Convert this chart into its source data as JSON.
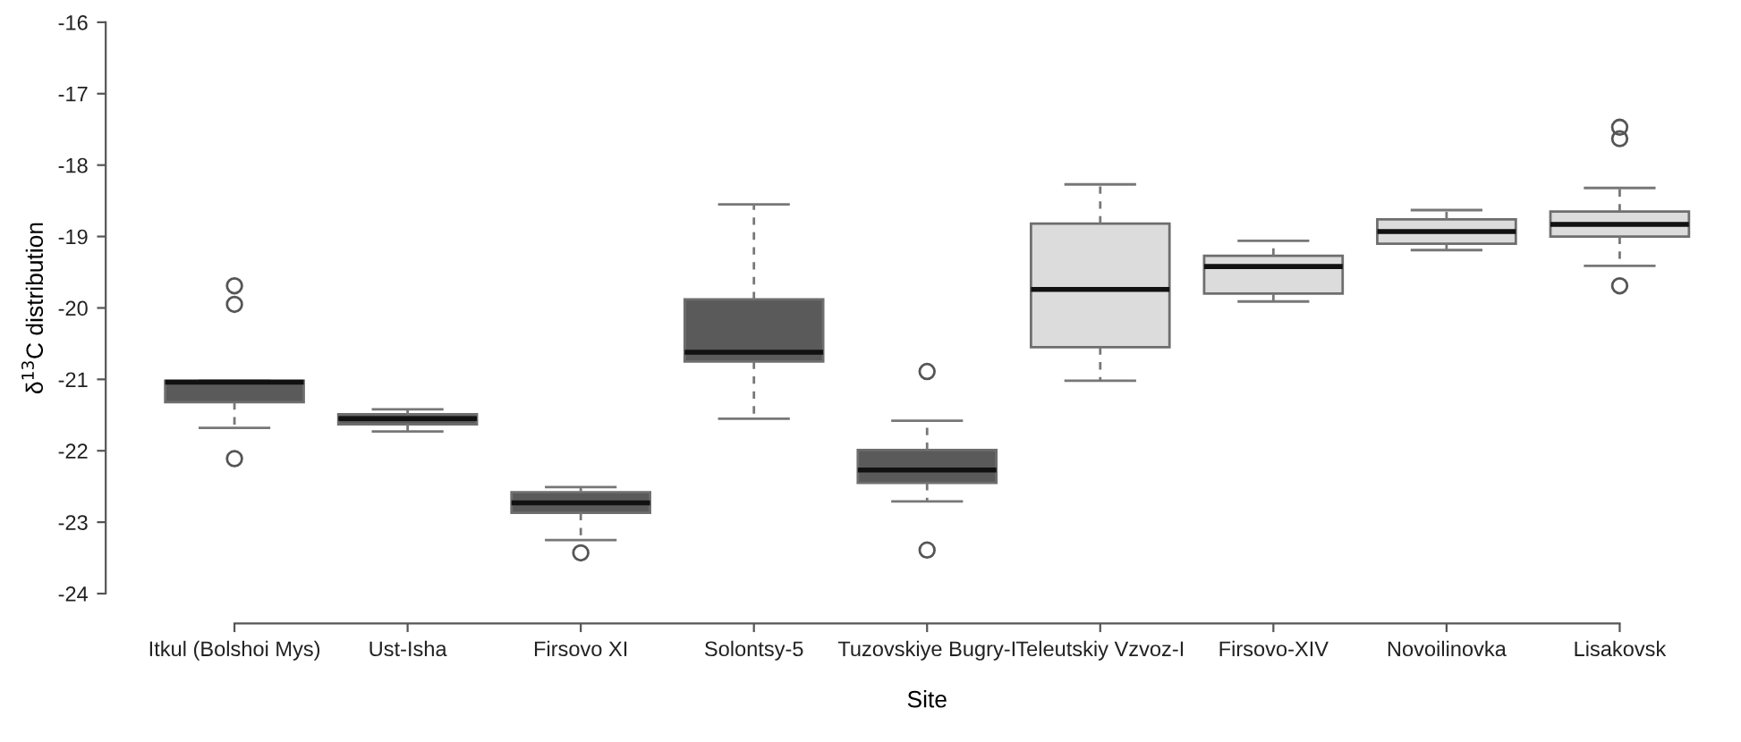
{
  "chart_data": {
    "type": "box",
    "xlabel": "Site",
    "ylabel": "δ$^{13}$C distribution",
    "categories": [
      "Itkul (Bolshoi Mys)",
      "Ust-Isha",
      "Firsovo XI",
      "Solontsy-5",
      "Tuzovskiye Bugry-I",
      "Teleutskiy Vzvoz-I",
      "Firsovo-XIV",
      "Novoilinovka",
      "Lisakovsk"
    ],
    "colors": [
      "#5a5a5a",
      "#5a5a5a",
      "#5a5a5a",
      "#5a5a5a",
      "#5a5a5a",
      "#dcdcdc",
      "#dcdcdc",
      "#dcdcdc",
      "#dcdcdc"
    ],
    "boxes": [
      {
        "low": -21.68,
        "q1": -21.32,
        "median": -21.04,
        "q3": -21.02,
        "high": -21.02,
        "outliers": [
          -19.69,
          -19.95,
          -22.11
        ]
      },
      {
        "low": -21.73,
        "q1": -21.63,
        "median": -21.55,
        "q3": -21.49,
        "high": -21.42
      },
      {
        "low": -23.25,
        "q1": -22.87,
        "median": -22.73,
        "q3": -22.58,
        "high": -22.51,
        "outliers": [
          -23.43
        ]
      },
      {
        "low": -21.55,
        "q1": -20.75,
        "median": -20.62,
        "q3": -19.88,
        "high": -18.55
      },
      {
        "low": -22.71,
        "q1": -22.45,
        "median": -22.27,
        "q3": -21.99,
        "high": -21.58,
        "outliers": [
          -20.89,
          -23.39
        ]
      },
      {
        "low": -21.02,
        "q1": -20.55,
        "median": -19.74,
        "q3": -18.82,
        "high": -18.27
      },
      {
        "low": -19.91,
        "q1": -19.8,
        "median": -19.42,
        "q3": -19.27,
        "high": -19.06
      },
      {
        "low": -19.19,
        "q1": -19.1,
        "median": -18.93,
        "q3": -18.76,
        "high": -18.63
      },
      {
        "low": -19.41,
        "q1": -19.0,
        "median": -18.83,
        "q3": -18.65,
        "high": -18.32,
        "outliers": [
          -17.47,
          -17.63,
          -19.69
        ]
      }
    ],
    "ylim": [
      -24,
      -16
    ],
    "yticks": [
      -24,
      -23,
      -22,
      -21,
      -20,
      -19,
      -18,
      -17,
      -16
    ],
    "grid": false
  }
}
